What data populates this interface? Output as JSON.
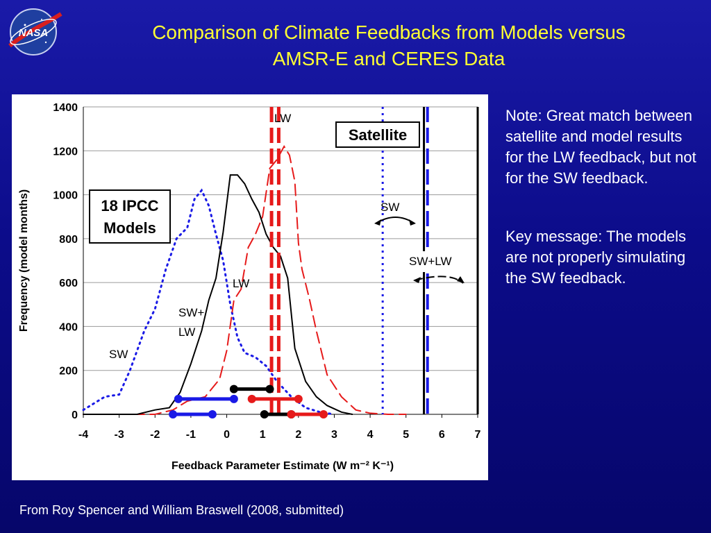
{
  "slide": {
    "title_line1": "Comparison of Climate Feedbacks from Models versus",
    "title_line2": "AMSR-E and CERES Data",
    "logo_text": "NASA",
    "note1": "Note: Great match between satellite and model results for the LW feedback, but not for the SW feedback.",
    "note2": "Key message: The models are not properly simulating the SW feedback.",
    "source": "From Roy Spencer and William Braswell (2008, submitted)"
  },
  "chart_data": {
    "type": "line",
    "xlabel": "Feedback Parameter Estimate (W m⁻² K⁻¹)",
    "ylabel": "Frequency (model months)",
    "xlim": [
      -4,
      7
    ],
    "ylim": [
      0,
      1400
    ],
    "xticks": [
      -4,
      -3,
      -2,
      -1,
      0,
      1,
      2,
      3,
      4,
      5,
      6,
      7
    ],
    "yticks": [
      0,
      200,
      400,
      600,
      800,
      1000,
      1200,
      1400
    ],
    "grid": true,
    "labels": {
      "models_box": [
        "18 IPCC",
        "Models"
      ],
      "satellite_box": "Satellite",
      "lw_top": "LW",
      "lw_mid": "LW",
      "swlw_line1": "SW+",
      "swlw_line2": "LW",
      "sw_left": "SW",
      "sw_right": "SW",
      "swlw_right": "SW+LW"
    },
    "colors": {
      "sw": "#1a1ae6",
      "lw": "#e61a1a",
      "swlw": "#000000"
    },
    "series": [
      {
        "name": "SW",
        "style": "dotted",
        "x": [
          -4,
          -3.7,
          -3.4,
          -3.0,
          -2.7,
          -2.3,
          -2.0,
          -1.7,
          -1.4,
          -1.1,
          -0.9,
          -0.7,
          -0.5,
          -0.3,
          -0.1,
          0.1,
          0.3,
          0.5,
          0.8,
          1.1,
          1.4,
          1.8,
          2.2,
          2.6,
          3.0
        ],
        "y": [
          20,
          50,
          80,
          90,
          200,
          380,
          480,
          660,
          800,
          850,
          980,
          1020,
          950,
          820,
          700,
          500,
          350,
          280,
          260,
          220,
          150,
          80,
          30,
          10,
          0
        ]
      },
      {
        "name": "LW",
        "style": "dashed",
        "x": [
          -4,
          -2,
          -1.5,
          -1.1,
          -0.6,
          -0.2,
          0.0,
          0.2,
          0.4,
          0.6,
          0.8,
          1.0,
          1.2,
          1.4,
          1.6,
          1.75,
          1.9,
          2.0,
          2.1,
          2.3,
          2.5,
          2.8,
          3.2,
          3.6,
          4.0,
          4.5,
          5.0
        ],
        "y": [
          0,
          0,
          20,
          60,
          80,
          160,
          290,
          520,
          570,
          760,
          820,
          900,
          1120,
          1160,
          1220,
          1180,
          1060,
          780,
          660,
          530,
          380,
          180,
          80,
          20,
          5,
          0,
          0
        ]
      },
      {
        "name": "SW+LW",
        "style": "solid",
        "x": [
          -4,
          -2.5,
          -2.0,
          -1.6,
          -1.3,
          -1.0,
          -0.7,
          -0.5,
          -0.3,
          -0.1,
          0.1,
          0.3,
          0.5,
          0.7,
          0.9,
          1.1,
          1.3,
          1.5,
          1.7,
          1.9,
          2.2,
          2.5,
          2.8,
          3.2,
          3.5
        ],
        "y": [
          0,
          0,
          20,
          30,
          100,
          230,
          380,
          520,
          620,
          830,
          1090,
          1090,
          1050,
          980,
          920,
          820,
          760,
          720,
          620,
          300,
          150,
          80,
          40,
          10,
          0
        ]
      }
    ],
    "vertical_lines": [
      {
        "x": 1.25,
        "style": "dashed",
        "color": "#e61a1a",
        "note": "model LW mean"
      },
      {
        "x": 1.45,
        "style": "dashed",
        "color": "#e61a1a",
        "note": "model LW mean"
      },
      {
        "x": 4.35,
        "style": "dotted",
        "color": "#1a1ae6",
        "note": "satellite SW"
      },
      {
        "x": 5.5,
        "style": "solid",
        "color": "#000000",
        "note": "satellite SW+LW"
      },
      {
        "x": 5.6,
        "style": "dashed",
        "color": "#1a1ae6",
        "note": "satellite"
      },
      {
        "x": 7.0,
        "style": "solid",
        "color": "#000000",
        "note": "satellite"
      }
    ],
    "error_bars": [
      {
        "y": 0,
        "x": [
          -1.5,
          -0.4
        ],
        "color": "#1a1ae6"
      },
      {
        "y": 0,
        "x": [
          1.05,
          1.8
        ],
        "color": "#000000"
      },
      {
        "y": 0,
        "x": [
          1.8,
          2.7
        ],
        "color": "#e61a1a"
      },
      {
        "y": 70,
        "x": [
          -1.35,
          0.2
        ],
        "color": "#1a1ae6"
      },
      {
        "y": 70,
        "x": [
          0.7,
          2.0
        ],
        "color": "#e61a1a"
      },
      {
        "y": 115,
        "x": [
          0.2,
          1.2
        ],
        "color": "#000000"
      }
    ]
  }
}
